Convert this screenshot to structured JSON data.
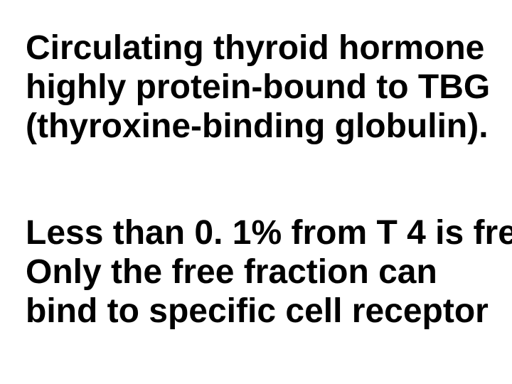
{
  "slide": {
    "background_color": "#ffffff",
    "text_color": "#000000",
    "font_family": "Arial",
    "font_weight": 700,
    "paragraphs": {
      "p1": {
        "lines": [
          "Circulating thyroid hormone",
          "highly protein-bound to TBG",
          "(thyroxine-binding globulin)."
        ],
        "font_size_pt": 36
      },
      "p2": {
        "lines": [
          "Less than 0. 1% from T 4 is fre",
          "Only the free fraction can",
          "bind to specific cell receptor"
        ],
        "font_size_pt": 36
      }
    }
  }
}
